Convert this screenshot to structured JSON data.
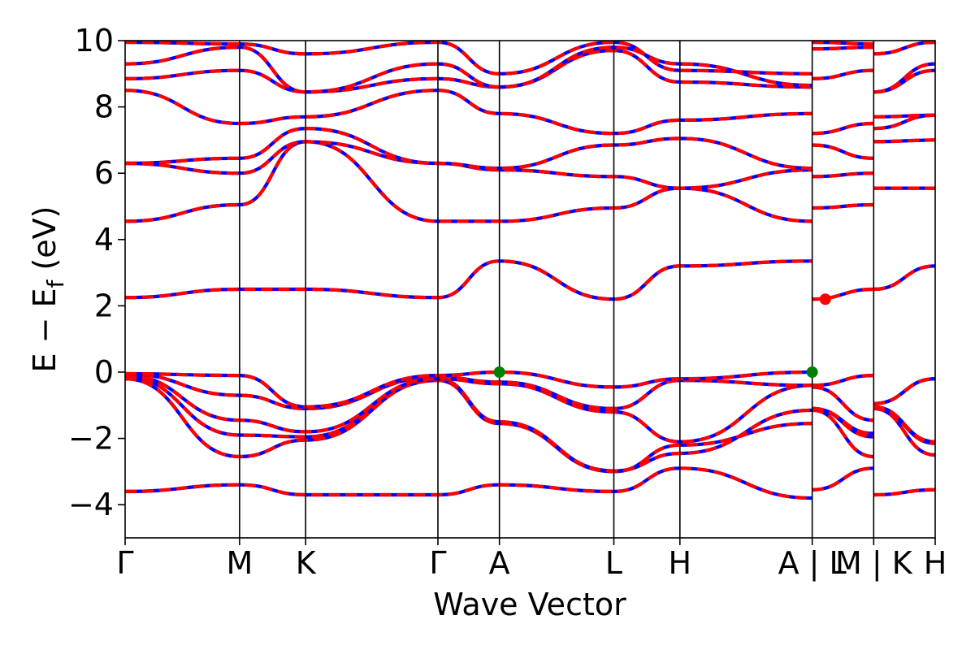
{
  "chart_data": {
    "type": "line",
    "xlabel": "Wave Vector",
    "ylabel": "E − E_f (eV)",
    "ylabel_parts": {
      "main": "E − E",
      "sub": "f",
      "unit": " (eV)"
    },
    "ylim": [
      -5,
      10
    ],
    "x_tick_labels": [
      "Γ",
      "M",
      "K",
      "Γ",
      "A",
      "L",
      "H",
      "A | L",
      "M | K",
      "H"
    ],
    "y_ticks": [
      -4,
      -2,
      0,
      2,
      4,
      6,
      8,
      10
    ],
    "y_tick_labels": [
      "−4",
      "−2",
      "0",
      "2",
      "4",
      "6",
      "8",
      "10"
    ],
    "grid": false,
    "legend": "none",
    "colors": {
      "band_outer": "#0000ff",
      "band_inner": "#ff0000",
      "vbm_marker": "#008000",
      "cbm_marker": "#ff0000"
    },
    "k_points": [
      {
        "label": "Γ",
        "x": 0.0
      },
      {
        "label": "M",
        "x": 0.577
      },
      {
        "label": "K",
        "x": 0.91
      },
      {
        "label": "Γ",
        "x": 1.577
      },
      {
        "label": "A",
        "x": 1.887
      },
      {
        "label": "L",
        "x": 2.464
      },
      {
        "label": "H",
        "x": 2.797
      },
      {
        "label": "A|L",
        "x": 3.464
      },
      {
        "label": "M|K",
        "x": 3.774
      },
      {
        "label": "H",
        "x": 4.084
      }
    ],
    "breaks": [
      3.464,
      3.774
    ],
    "band_points": [
      [
        -3.6,
        -3.4,
        -3.7,
        -3.7,
        -3.4,
        -3.6,
        -2.9,
        -3.8,
        -3.55,
        -2.9,
        -3.8,
        -3.7,
        -3.55
      ],
      [
        -0.2,
        -2.55,
        -2.05,
        -0.25,
        -1.55,
        -3.0,
        -2.2,
        -1.55,
        -1.15,
        -2.55,
        -2.55,
        -1.1,
        -2.5
      ],
      [
        -0.15,
        -1.9,
        -1.95,
        -0.2,
        -1.5,
        -2.98,
        -2.45,
        -1.15,
        -1.1,
        -1.95,
        -1.95,
        -1.05,
        -2.15
      ],
      [
        -0.1,
        -1.45,
        -1.8,
        -0.2,
        -0.35,
        -1.2,
        -2.1,
        -0.4,
        -1.1,
        -1.85,
        -1.85,
        -1.05,
        -2.1
      ],
      [
        -0.05,
        -0.7,
        -1.1,
        -0.15,
        -0.3,
        -1.1,
        -0.25,
        -0.4,
        -0.45,
        -1.45,
        -1.45,
        -0.95,
        -0.2
      ],
      [
        -0.05,
        -0.1,
        -1.05,
        -0.1,
        0.0,
        -0.45,
        -0.2,
        0.0,
        -0.4,
        -0.1,
        -0.1,
        -0.95,
        -0.2
      ],
      [
        2.25,
        2.5,
        2.5,
        2.25,
        3.35,
        2.2,
        3.2,
        3.35,
        2.2,
        2.5,
        2.5,
        2.5,
        3.2
      ],
      [
        4.55,
        5.05,
        6.95,
        4.55,
        4.55,
        4.95,
        5.55,
        4.55,
        4.95,
        5.05,
        5.05,
        5.55,
        5.55
      ],
      [
        6.3,
        6.0,
        6.95,
        6.3,
        6.1,
        5.9,
        5.55,
        6.1,
        5.9,
        6.0,
        6.0,
        6.95,
        7.0
      ],
      [
        6.3,
        6.45,
        7.35,
        6.3,
        6.15,
        6.85,
        7.05,
        6.15,
        6.85,
        6.45,
        6.45,
        7.35,
        7.75
      ],
      [
        8.5,
        7.5,
        7.7,
        8.5,
        7.8,
        7.2,
        7.6,
        7.8,
        7.2,
        7.5,
        7.5,
        7.7,
        7.75
      ],
      [
        8.85,
        9.1,
        8.45,
        8.85,
        8.6,
        9.7,
        8.75,
        8.6,
        8.85,
        9.1,
        9.1,
        8.45,
        9.1
      ],
      [
        9.3,
        9.8,
        8.45,
        9.3,
        8.6,
        9.8,
        9.3,
        8.65,
        9.75,
        9.8,
        9.8,
        8.45,
        9.3
      ],
      [
        9.95,
        9.9,
        9.6,
        9.95,
        9.0,
        9.95,
        9.1,
        9.0,
        9.95,
        9.9,
        9.9,
        9.6,
        9.95
      ]
    ],
    "band_point_x": [
      0.0,
      0.577,
      0.91,
      1.577,
      1.887,
      2.464,
      2.797,
      3.464,
      3.464,
      3.774,
      3.774,
      3.774,
      4.084
    ],
    "markers": [
      {
        "name": "vbm-marker",
        "x": 1.887,
        "y": 0.0,
        "color": "#008000"
      },
      {
        "name": "vbm-marker",
        "x": 3.464,
        "y": 0.0,
        "color": "#008000"
      },
      {
        "name": "cbm-marker",
        "x": 3.53,
        "y": 2.2,
        "color": "#ff0000"
      }
    ]
  }
}
